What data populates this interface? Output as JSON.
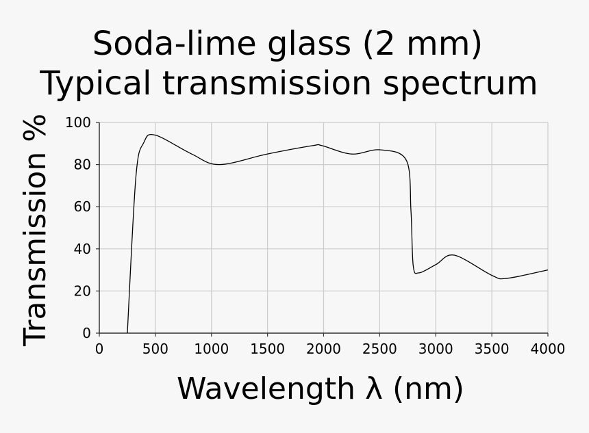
{
  "chart_data": {
    "type": "line",
    "title": [
      "Soda-lime glass (2 mm)",
      "Typical transmission spectrum"
    ],
    "xlabel": "Wavelength λ (nm)",
    "ylabel": "Transmission %",
    "xlim": [
      0,
      4000
    ],
    "ylim": [
      0,
      100
    ],
    "xticks": [
      "0",
      "500",
      "1000",
      "1500",
      "2000",
      "2500",
      "3000",
      "3500",
      "4000"
    ],
    "yticks": [
      "0",
      "20",
      "40",
      "60",
      "80",
      "100"
    ],
    "grid": true,
    "series": [
      {
        "color": "#000000",
        "x": [
          250,
          326,
          397,
          499,
          824,
          1069,
          1496,
          1903,
          1985,
          2249,
          2504,
          2738,
          2779,
          2799,
          2850,
          3003,
          3166,
          3501,
          3634,
          4000
        ],
        "y": [
          0,
          74,
          90.5,
          94,
          85,
          80,
          85,
          89,
          89,
          85,
          87,
          82,
          58,
          32,
          28.6,
          32.6,
          37,
          27.4,
          26,
          30
        ]
      }
    ]
  }
}
